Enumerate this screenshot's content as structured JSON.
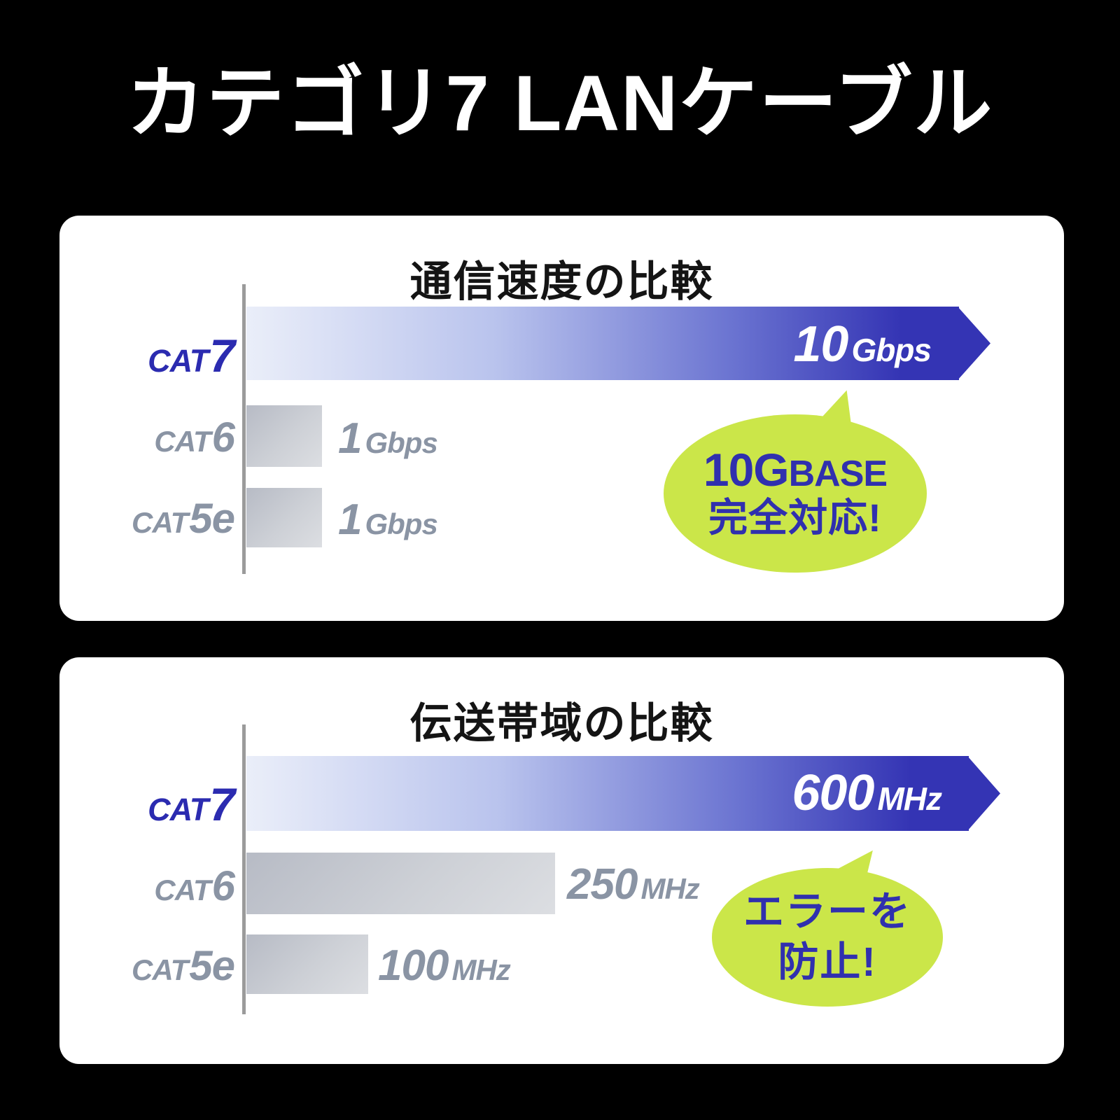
{
  "page_title": "カテゴリ7 LANケーブル",
  "colors": {
    "background": "#000000",
    "panel": "#ffffff",
    "accent_blue": "#3434b4",
    "cat7_label_blue": "#2b2bb0",
    "bar_blue_gradient_start": "#eaeef9",
    "bar_gray_dark": "#b7bbc5",
    "bar_gray_light": "#dcdee2",
    "gray_text": "#8a94a4",
    "bubble_green": "#cbe649",
    "bubble_text_blue": "#3030ae",
    "page_title_text": "#ffffff",
    "chart_title_text": "#141414",
    "axis_gray": "#9b9b9b"
  },
  "chart_data": [
    {
      "type": "bar",
      "orientation": "horizontal",
      "title": "通信速度の比較",
      "categories": [
        "CAT7",
        "CAT6",
        "CAT5e"
      ],
      "values": [
        10,
        1,
        1
      ],
      "unit": "Gbps",
      "value_labels": [
        "10Gbps",
        "1Gbps",
        "1Gbps"
      ],
      "xlim": [
        0,
        10
      ],
      "grid": false,
      "legend": "none",
      "highlight_category": "CAT7",
      "rows": [
        {
          "cat_prefix": "CAT",
          "cat_id": "7",
          "value_num": "10",
          "value_unit": "Gbps"
        },
        {
          "cat_prefix": "CAT",
          "cat_id": "6",
          "value_num": "1",
          "value_unit": "Gbps"
        },
        {
          "cat_prefix": "CAT",
          "cat_id": "5e",
          "value_num": "1",
          "value_unit": "Gbps"
        }
      ],
      "callout": {
        "text": "10GBASE完全対応!",
        "line1_big": "10G",
        "line1_small": "BASE",
        "line2": "完全対応!"
      }
    },
    {
      "type": "bar",
      "orientation": "horizontal",
      "title": "伝送帯域の比較",
      "categories": [
        "CAT7",
        "CAT6",
        "CAT5e"
      ],
      "values": [
        600,
        250,
        100
      ],
      "unit": "MHz",
      "value_labels": [
        "600MHz",
        "250MHz",
        "100MHz"
      ],
      "xlim": [
        0,
        600
      ],
      "grid": false,
      "legend": "none",
      "highlight_category": "CAT7",
      "rows": [
        {
          "cat_prefix": "CAT",
          "cat_id": "7",
          "value_num": "600",
          "value_unit": "MHz"
        },
        {
          "cat_prefix": "CAT",
          "cat_id": "6",
          "value_num": "250",
          "value_unit": "MHz"
        },
        {
          "cat_prefix": "CAT",
          "cat_id": "5e",
          "value_num": "100",
          "value_unit": "MHz"
        }
      ],
      "callout": {
        "text": "エラーを防止!",
        "line1": "エラーを",
        "line2": "防止!"
      }
    }
  ]
}
